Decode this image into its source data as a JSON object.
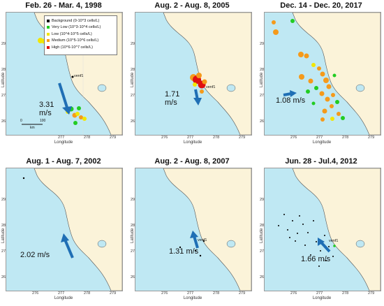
{
  "panels": [
    {
      "title": "Feb. 26 - Mar. 4, 1998",
      "speed": "3.31\nm/s"
    },
    {
      "title": "Aug. 2 - Aug. 8, 2005",
      "speed": "1.71\nm/s"
    },
    {
      "title": "Dec. 14 - Dec. 20, 2017",
      "speed": "1.08 m/s"
    },
    {
      "title": "Aug. 1 - Aug. 7, 2002",
      "speed": "2.02 m/s"
    },
    {
      "title": "Aug. 2 - Aug. 8, 2007",
      "speed": "1.31 m/s"
    },
    {
      "title": "Jun. 28 - Jul.4, 2012",
      "speed": "1.66 m/s"
    }
  ],
  "axis": {
    "xlabel": "Longitude",
    "ylabel": "Latitude",
    "xticks": [
      "276",
      "277",
      "278",
      "279"
    ],
    "yticks": [
      "29",
      "28",
      "27",
      "26"
    ]
  },
  "station": "venf1",
  "legend": [
    {
      "label": "Background (0-10^3 cells/L)",
      "color": "#000000"
    },
    {
      "label": "Very Low (10^3-10^4 cells/L)",
      "color": "#22cc22"
    },
    {
      "label": "Low (10^4-10^5 cells/L)",
      "color": "#f2e600"
    },
    {
      "label": "Medium (10^5-10^6 cells/L)",
      "color": "#f59a1a"
    },
    {
      "label": "High (10^6-10^7 cells/L)",
      "color": "#e01010"
    }
  ],
  "scale": {
    "zero": "0",
    "hundred": "100",
    "unit": "km"
  },
  "colors": {
    "water": "#bfe8f3",
    "land": "#fbf3d9",
    "arrow": "#1f6fb5"
  }
}
